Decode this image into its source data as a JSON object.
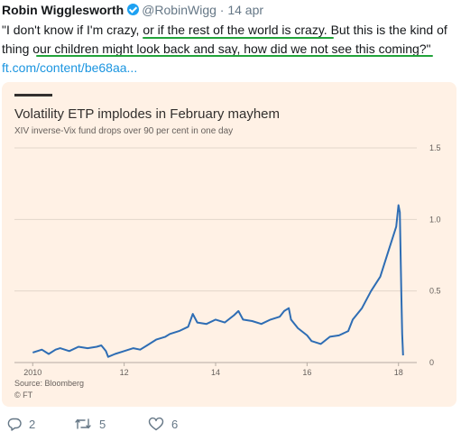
{
  "tweet": {
    "author": "Robin Wigglesworth",
    "handle": "@RobinWigg",
    "separator": "·",
    "date": "14 apr",
    "text_line1": "\"I don't know if I'm crazy, or if the rest of the world is crazy. But this is the kind of",
    "text_line2": "thing our children might look back and say, how did we not see this coming?\"",
    "link": "ft.com/content/be68aa..."
  },
  "card": {
    "title": "Volatility ETP implodes in February mayhem",
    "subtitle": "XIV inverse-Vix fund drops over 90 per cent in one day",
    "source": "Source: Bloomberg",
    "credit": "© FT"
  },
  "chart_data": {
    "type": "line",
    "title": "Volatility ETP implodes in February mayhem",
    "subtitle": "XIV inverse-Vix fund drops over 90 per cent in one day",
    "xlabel": "",
    "ylabel": "",
    "x_tick_labels": [
      "2010",
      "12",
      "14",
      "16",
      "18"
    ],
    "x_ticks": [
      2010,
      2012,
      2014,
      2016,
      2018
    ],
    "y_ticks": [
      0,
      0.5,
      1.0,
      1.5
    ],
    "y_tick_labels": [
      "0",
      "0.5",
      "1.0",
      "1.5"
    ],
    "xlim": [
      2009.6,
      2018.4
    ],
    "ylim": [
      0,
      1.5
    ],
    "grid": true,
    "series": [
      {
        "color": "#2e6db4",
        "x": [
          2010.0,
          2010.2,
          2010.35,
          2010.5,
          2010.6,
          2010.8,
          2011.0,
          2011.2,
          2011.4,
          2011.5,
          2011.6,
          2011.65,
          2011.8,
          2012.0,
          2012.2,
          2012.35,
          2012.5,
          2012.7,
          2012.9,
          2013.0,
          2013.2,
          2013.4,
          2013.5,
          2013.6,
          2013.8,
          2014.0,
          2014.2,
          2014.4,
          2014.5,
          2014.6,
          2014.8,
          2015.0,
          2015.2,
          2015.4,
          2015.5,
          2015.6,
          2015.65,
          2015.8,
          2016.0,
          2016.1,
          2016.3,
          2016.5,
          2016.7,
          2016.9,
          2017.0,
          2017.2,
          2017.4,
          2017.6,
          2017.8,
          2017.95,
          2018.0,
          2018.03,
          2018.06,
          2018.08,
          2018.1
        ],
        "values": [
          0.07,
          0.09,
          0.06,
          0.09,
          0.1,
          0.08,
          0.11,
          0.1,
          0.11,
          0.12,
          0.08,
          0.04,
          0.06,
          0.08,
          0.1,
          0.09,
          0.12,
          0.16,
          0.18,
          0.2,
          0.22,
          0.25,
          0.34,
          0.28,
          0.27,
          0.3,
          0.28,
          0.33,
          0.36,
          0.3,
          0.29,
          0.27,
          0.3,
          0.32,
          0.36,
          0.38,
          0.3,
          0.24,
          0.19,
          0.15,
          0.13,
          0.18,
          0.19,
          0.22,
          0.3,
          0.38,
          0.5,
          0.6,
          0.8,
          0.95,
          1.1,
          1.05,
          0.5,
          0.2,
          0.05
        ]
      }
    ]
  },
  "actions": {
    "reply_count": "2",
    "retweet_count": "5",
    "like_count": "6"
  },
  "colors": {
    "card_background": "#fff1e5",
    "line": "#2e6db4",
    "highlight": "#22a33a",
    "link": "#1b95e0"
  }
}
